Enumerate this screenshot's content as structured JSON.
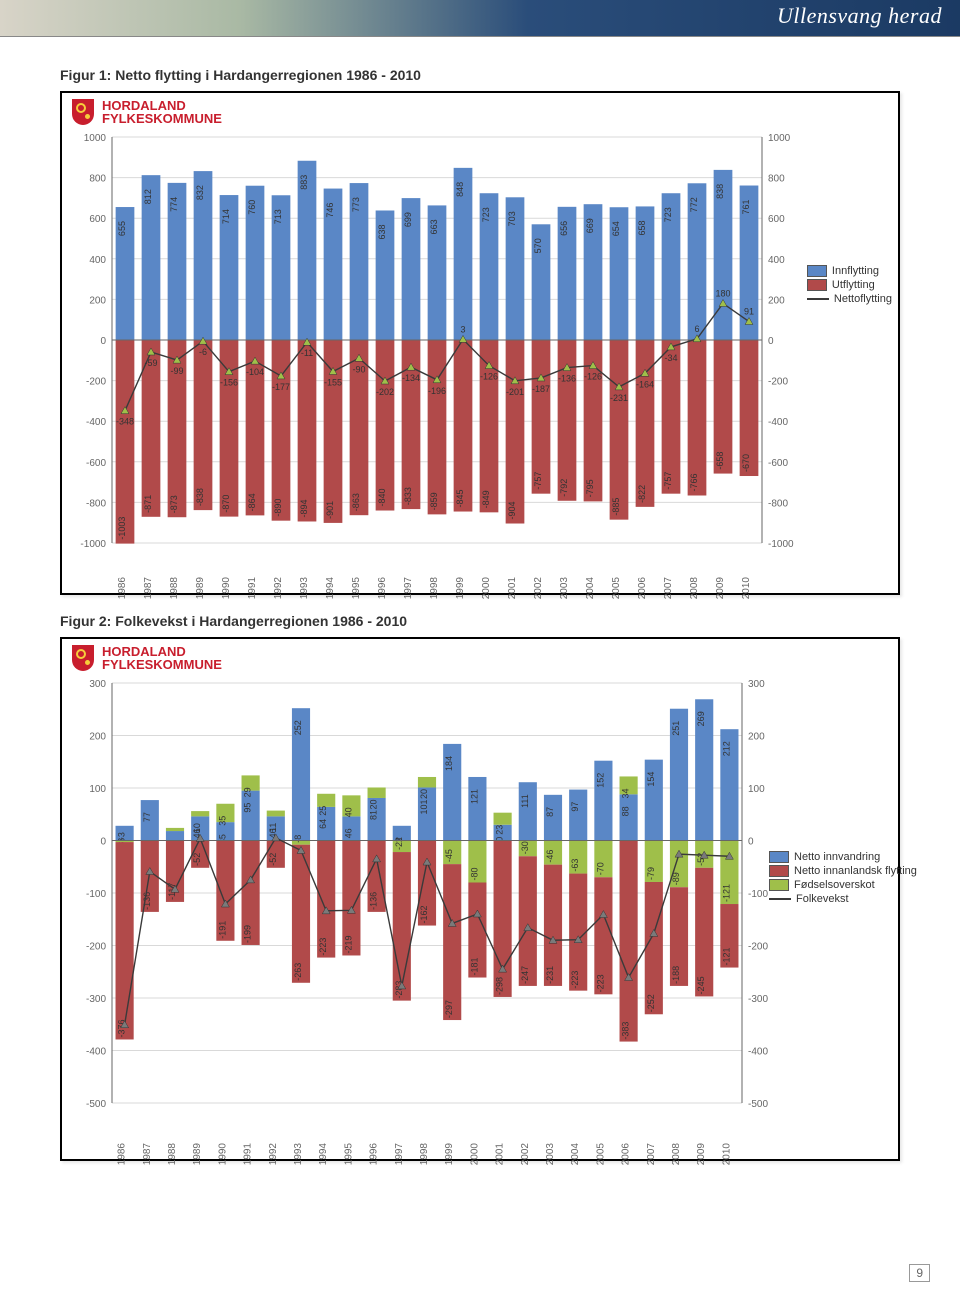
{
  "banner": {
    "title": "Ullensvang herad"
  },
  "captions": {
    "fig1": "Figur 1: Netto flytting i Hardangerregionen 1986 - 2010",
    "fig2": "Figur 2: Folkevekst i Hardangerregionen 1986 - 2010"
  },
  "logo": {
    "line1": "HORDALAND",
    "line2": "FYLKESKOMMUNE"
  },
  "page_number": "9",
  "chart1": {
    "type": "bar+line",
    "years": [
      1986,
      1987,
      1988,
      1989,
      1990,
      1991,
      1992,
      1993,
      1994,
      1995,
      1996,
      1997,
      1998,
      1999,
      2000,
      2001,
      2002,
      2003,
      2004,
      2005,
      2006,
      2007,
      2008,
      2009,
      2010
    ],
    "innflytting": [
      655,
      812,
      774,
      832,
      714,
      760,
      713,
      883,
      746,
      773,
      638,
      699,
      663,
      848,
      723,
      703,
      570,
      656,
      669,
      654,
      658,
      723,
      772,
      838,
      761
    ],
    "utflytting": [
      -1003,
      -871,
      -873,
      -838,
      -870,
      -864,
      -890,
      -894,
      -901,
      -863,
      -840,
      -833,
      -859,
      -845,
      -849,
      -904,
      -757,
      -792,
      -795,
      -885,
      -822,
      -757,
      -766,
      -658,
      -670
    ],
    "nettoflytting": [
      -348,
      -59,
      -99,
      -6,
      -156,
      -104,
      -177,
      -11,
      -155,
      -90,
      -202,
      -134,
      -196,
      3,
      -126,
      -201,
      -187,
      -136,
      -126,
      -231,
      -164,
      -34,
      6,
      180,
      91
    ],
    "ymin": -1000,
    "ymax": 1000,
    "ystep": 200,
    "colors": {
      "inn": "#5a87c6",
      "ut": "#b14a4a",
      "net_line": "#3a3a3a",
      "net_marker": "#9fbf4a",
      "grid": "#d9d9d9",
      "axis": "#666",
      "label": "#666",
      "bg": "#ffffff"
    },
    "legend": [
      {
        "label": "Innflytting",
        "type": "sw",
        "color": "#5a87c6"
      },
      {
        "label": "Utflytting",
        "type": "sw",
        "color": "#b14a4a"
      },
      {
        "label": "Nettoflytting",
        "type": "ln",
        "color": "#3a3a3a"
      }
    ],
    "label_fontsize": 9,
    "tick_fontsize": 10
  },
  "chart2": {
    "type": "stacked-bar+line",
    "years": [
      1986,
      1987,
      1988,
      1989,
      1990,
      1991,
      1992,
      1993,
      1994,
      1995,
      1996,
      1997,
      1998,
      1999,
      2000,
      2001,
      2002,
      2003,
      2004,
      2005,
      2006,
      2007,
      2008,
      2009,
      2010
    ],
    "netto_innvandring": [
      28,
      77,
      18,
      46,
      35,
      95,
      46,
      252,
      64,
      46,
      81,
      28,
      101,
      184,
      121,
      30,
      111,
      87,
      97,
      152,
      88,
      154,
      251,
      269,
      212
    ],
    "fodsel": [
      -3,
      0,
      6,
      10,
      35,
      29,
      11,
      -8,
      25,
      40,
      20,
      -22,
      20,
      -45,
      -80,
      23,
      -30,
      -46,
      -63,
      -70,
      34,
      -79,
      -89,
      -52,
      -121
    ],
    "netto_innanlandsk": [
      -376,
      -136,
      -117,
      -52,
      -191,
      -199,
      -52,
      -263,
      -223,
      -219,
      -136,
      -283,
      -162,
      -297,
      -181,
      -298,
      -247,
      -231,
      -223,
      -223,
      -383,
      -252,
      -188,
      -245,
      -121
    ],
    "folkevekst": [
      -351,
      -59,
      -93,
      4,
      -121,
      -75,
      5,
      -19,
      -134,
      -133,
      -35,
      -277,
      -41,
      -158,
      -140,
      -245,
      -166,
      -190,
      -189,
      -141,
      -261,
      -177,
      -26,
      -28,
      -30
    ],
    "ymin": -500,
    "ymax": 300,
    "ystep": 100,
    "colors": {
      "inn": "#5a87c6",
      "fod": "#9fbf4a",
      "innan": "#b14a4a",
      "line": "#3a3a3a",
      "marker": "#7a7a7a",
      "grid": "#d9d9d9",
      "axis": "#666",
      "label": "#666",
      "bg": "#ffffff"
    },
    "legend": [
      {
        "label": "Netto innvandring",
        "type": "sw",
        "color": "#5a87c6"
      },
      {
        "label": "Netto innanlandsk flytting",
        "type": "sw",
        "color": "#b14a4a"
      },
      {
        "label": "Fødselsoverskot",
        "type": "sw",
        "color": "#9fbf4a"
      },
      {
        "label": "Folkevekst",
        "type": "ln",
        "color": "#3a3a3a"
      }
    ],
    "label_fontsize": 9,
    "tick_fontsize": 10
  }
}
